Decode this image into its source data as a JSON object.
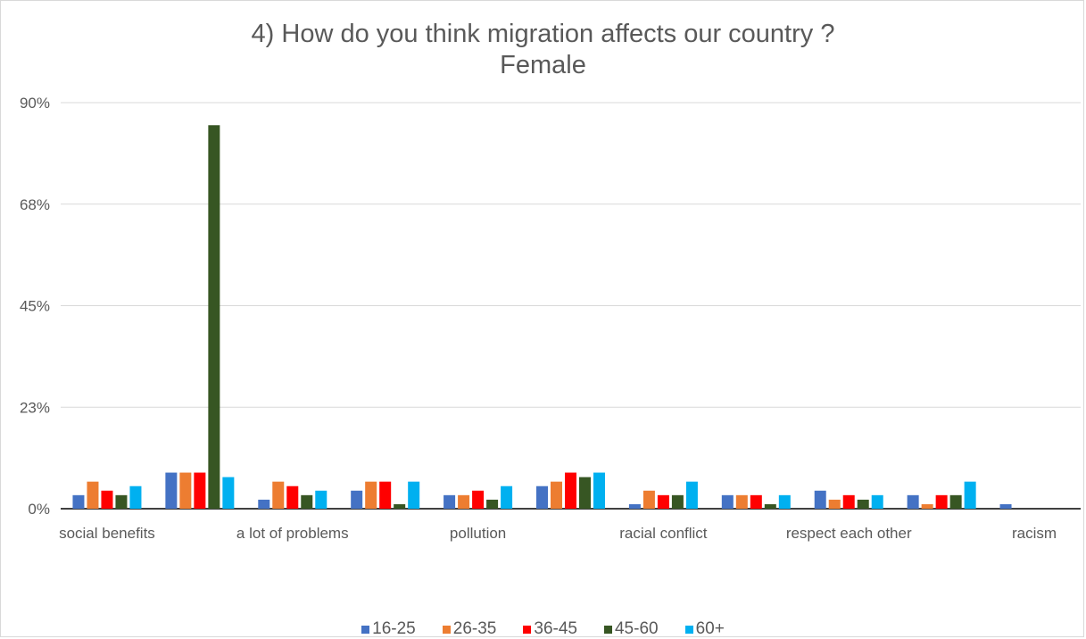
{
  "chart_data": {
    "type": "bar",
    "title": "4) How do you think migration affects our country ?",
    "subtitle": "Female",
    "xlabel": "",
    "ylabel": "",
    "ylim": [
      0,
      90
    ],
    "y_ticks": [
      "0%",
      "23%",
      "45%",
      "68%",
      "90%"
    ],
    "y_tick_values": [
      0,
      22.5,
      45,
      67.5,
      90
    ],
    "grid": true,
    "legend_position": "bottom",
    "categories": [
      "social benefits",
      "",
      "a lot of problems",
      "",
      "pollution",
      "",
      "racial conflict",
      "",
      "respect each other",
      "",
      "racism"
    ],
    "series": [
      {
        "name": "16-25",
        "color": "#4472C4",
        "values": [
          3,
          8,
          2,
          4,
          3,
          5,
          1,
          3,
          4,
          3,
          1
        ]
      },
      {
        "name": "26-35",
        "color": "#ED7D31",
        "values": [
          6,
          8,
          6,
          6,
          3,
          6,
          4,
          3,
          2,
          1,
          0
        ]
      },
      {
        "name": "36-45",
        "color": "#FF0000",
        "values": [
          4,
          8,
          5,
          6,
          4,
          8,
          3,
          3,
          3,
          3,
          0
        ]
      },
      {
        "name": "45-60",
        "color": "#375623",
        "values": [
          3,
          85,
          3,
          1,
          2,
          7,
          3,
          1,
          2,
          3,
          0
        ]
      },
      {
        "name": "60+",
        "color": "#00B0F0",
        "values": [
          5,
          7,
          4,
          6,
          5,
          8,
          6,
          3,
          3,
          6,
          0
        ]
      }
    ]
  }
}
